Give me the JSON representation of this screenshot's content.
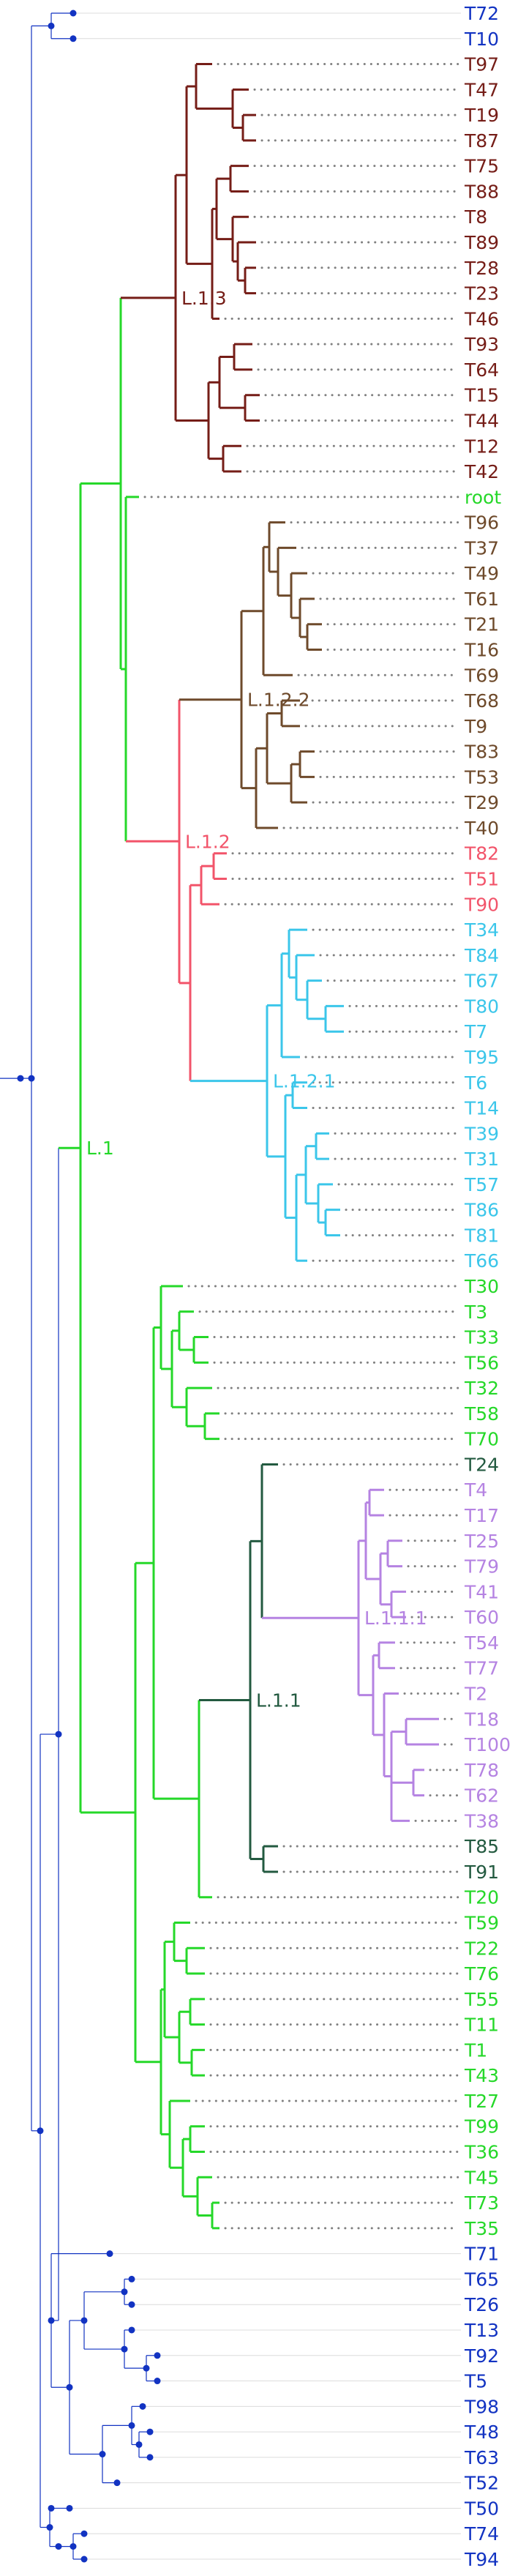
{
  "colors": {
    "outgroup": "#1233c2",
    "L.1": "#25d829",
    "L.1.3": "#751d17",
    "L.1.2": "#f2546a",
    "L.1.2.2": "#6e4a2b",
    "L.1.2.1": "#3bc6ea",
    "L.1.1": "#235a40",
    "L.1.1.1": "#b583e2",
    "gray": "#808080",
    "black": "#2b2b2b"
  },
  "leaves": [
    {
      "name": "T72",
      "group": "outgroup"
    },
    {
      "name": "T10",
      "group": "outgroup"
    },
    {
      "name": "T97",
      "group": "L.1.3"
    },
    {
      "name": "T47",
      "group": "L.1.3"
    },
    {
      "name": "T19",
      "group": "L.1.3"
    },
    {
      "name": "T87",
      "group": "L.1.3"
    },
    {
      "name": "T75",
      "group": "L.1.3"
    },
    {
      "name": "T88",
      "group": "L.1.3"
    },
    {
      "name": "T8",
      "group": "L.1.3"
    },
    {
      "name": "T89",
      "group": "L.1.3"
    },
    {
      "name": "T28",
      "group": "L.1.3"
    },
    {
      "name": "T23",
      "group": "L.1.3"
    },
    {
      "name": "T46",
      "group": "L.1.3"
    },
    {
      "name": "T93",
      "group": "L.1.3"
    },
    {
      "name": "T64",
      "group": "L.1.3"
    },
    {
      "name": "T15",
      "group": "L.1.3"
    },
    {
      "name": "T44",
      "group": "L.1.3"
    },
    {
      "name": "T12",
      "group": "L.1.3"
    },
    {
      "name": "T42",
      "group": "L.1.3"
    },
    {
      "name": "root",
      "group": "L.1"
    },
    {
      "name": "T96",
      "group": "L.1.2.2"
    },
    {
      "name": "T37",
      "group": "L.1.2.2"
    },
    {
      "name": "T49",
      "group": "L.1.2.2"
    },
    {
      "name": "T61",
      "group": "L.1.2.2"
    },
    {
      "name": "T21",
      "group": "L.1.2.2"
    },
    {
      "name": "T16",
      "group": "L.1.2.2"
    },
    {
      "name": "T69",
      "group": "L.1.2.2"
    },
    {
      "name": "T68",
      "group": "L.1.2.2"
    },
    {
      "name": "T9",
      "group": "L.1.2.2"
    },
    {
      "name": "T83",
      "group": "L.1.2.2"
    },
    {
      "name": "T53",
      "group": "L.1.2.2"
    },
    {
      "name": "T29",
      "group": "L.1.2.2"
    },
    {
      "name": "T40",
      "group": "L.1.2.2"
    },
    {
      "name": "T82",
      "group": "L.1.2"
    },
    {
      "name": "T51",
      "group": "L.1.2"
    },
    {
      "name": "T90",
      "group": "L.1.2"
    },
    {
      "name": "T34",
      "group": "L.1.2.1"
    },
    {
      "name": "T84",
      "group": "L.1.2.1"
    },
    {
      "name": "T67",
      "group": "L.1.2.1"
    },
    {
      "name": "T80",
      "group": "L.1.2.1"
    },
    {
      "name": "T7",
      "group": "L.1.2.1"
    },
    {
      "name": "T95",
      "group": "L.1.2.1"
    },
    {
      "name": "T6",
      "group": "L.1.2.1"
    },
    {
      "name": "T14",
      "group": "L.1.2.1"
    },
    {
      "name": "T39",
      "group": "L.1.2.1"
    },
    {
      "name": "T31",
      "group": "L.1.2.1"
    },
    {
      "name": "T57",
      "group": "L.1.2.1"
    },
    {
      "name": "T86",
      "group": "L.1.2.1"
    },
    {
      "name": "T81",
      "group": "L.1.2.1"
    },
    {
      "name": "T66",
      "group": "L.1.2.1"
    },
    {
      "name": "T30",
      "group": "L.1"
    },
    {
      "name": "T3",
      "group": "L.1"
    },
    {
      "name": "T33",
      "group": "L.1"
    },
    {
      "name": "T56",
      "group": "L.1"
    },
    {
      "name": "T32",
      "group": "L.1"
    },
    {
      "name": "T58",
      "group": "L.1"
    },
    {
      "name": "T70",
      "group": "L.1"
    },
    {
      "name": "T24",
      "group": "L.1.1"
    },
    {
      "name": "T4",
      "group": "L.1.1.1"
    },
    {
      "name": "T17",
      "group": "L.1.1.1"
    },
    {
      "name": "T25",
      "group": "L.1.1.1"
    },
    {
      "name": "T79",
      "group": "L.1.1.1"
    },
    {
      "name": "T41",
      "group": "L.1.1.1"
    },
    {
      "name": "T60",
      "group": "L.1.1.1"
    },
    {
      "name": "T54",
      "group": "L.1.1.1"
    },
    {
      "name": "T77",
      "group": "L.1.1.1"
    },
    {
      "name": "T2",
      "group": "L.1.1.1"
    },
    {
      "name": "T18",
      "group": "L.1.1.1"
    },
    {
      "name": "T100",
      "group": "L.1.1.1"
    },
    {
      "name": "T78",
      "group": "L.1.1.1"
    },
    {
      "name": "T62",
      "group": "L.1.1.1"
    },
    {
      "name": "T38",
      "group": "L.1.1.1"
    },
    {
      "name": "T85",
      "group": "L.1.1"
    },
    {
      "name": "T91",
      "group": "L.1.1"
    },
    {
      "name": "T20",
      "group": "L.1"
    },
    {
      "name": "T59",
      "group": "L.1"
    },
    {
      "name": "T22",
      "group": "L.1"
    },
    {
      "name": "T76",
      "group": "L.1"
    },
    {
      "name": "T55",
      "group": "L.1"
    },
    {
      "name": "T11",
      "group": "L.1"
    },
    {
      "name": "T1",
      "group": "L.1"
    },
    {
      "name": "T43",
      "group": "L.1"
    },
    {
      "name": "T27",
      "group": "L.1"
    },
    {
      "name": "T99",
      "group": "L.1"
    },
    {
      "name": "T36",
      "group": "L.1"
    },
    {
      "name": "T45",
      "group": "L.1"
    },
    {
      "name": "T73",
      "group": "L.1"
    },
    {
      "name": "T35",
      "group": "L.1"
    },
    {
      "name": "T71",
      "group": "outgroup"
    },
    {
      "name": "T65",
      "group": "outgroup"
    },
    {
      "name": "T26",
      "group": "outgroup"
    },
    {
      "name": "T13",
      "group": "outgroup"
    },
    {
      "name": "T92",
      "group": "outgroup"
    },
    {
      "name": "T5",
      "group": "outgroup"
    },
    {
      "name": "T98",
      "group": "outgroup"
    },
    {
      "name": "T48",
      "group": "outgroup"
    },
    {
      "name": "T63",
      "group": "outgroup"
    },
    {
      "name": "T52",
      "group": "outgroup"
    },
    {
      "name": "T50",
      "group": "outgroup"
    },
    {
      "name": "T74",
      "group": "outgroup"
    },
    {
      "name": "T94",
      "group": "outgroup"
    }
  ],
  "clade_labels": [
    {
      "text": "L.1",
      "group": "L.1"
    },
    {
      "text": "L.1.3",
      "group": "L.1.3"
    },
    {
      "text": "L.1.2",
      "group": "L.1.2"
    },
    {
      "text": "L.1.2.2",
      "group": "L.1.2.2"
    },
    {
      "text": "L.1.2.1",
      "group": "L.1.2.1"
    },
    {
      "text": "L.1.1",
      "group": "L.1.1"
    },
    {
      "text": "L.1.1.1",
      "group": "L.1.1.1"
    }
  ]
}
